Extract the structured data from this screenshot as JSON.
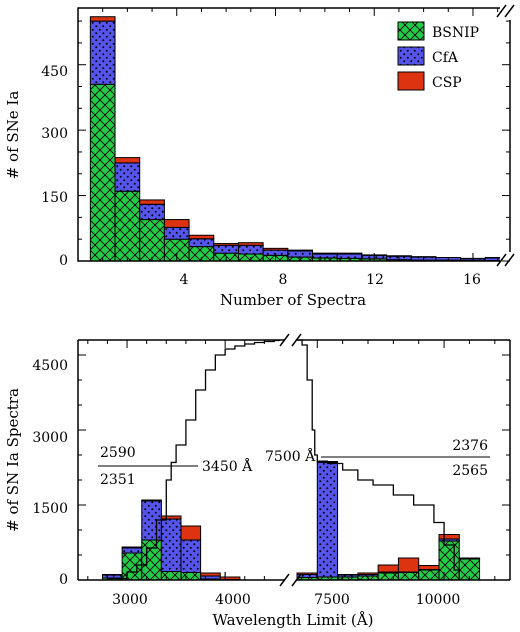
{
  "colors": {
    "bsnip": "#22cc44",
    "cfa": "#5555ee",
    "csp": "#dd3311"
  },
  "chart_data": [
    {
      "type": "bar",
      "stacked": true,
      "xlabel": "Number of Spectra",
      "ylabel": "# of SNe Ia",
      "xticks": [
        "4",
        "8",
        "12",
        "16"
      ],
      "yticks": [
        "0",
        "150",
        "300",
        "450"
      ],
      "xlim": [
        0,
        17.5
      ],
      "ylim": [
        0,
        580
      ],
      "legend_position": "top-right",
      "legend": [
        "BSNIP",
        "CfA",
        "CSP"
      ],
      "x": [
        1,
        2,
        3,
        4,
        5,
        6,
        7,
        8,
        9,
        10,
        11,
        12,
        13,
        14,
        15,
        16,
        17
      ],
      "series": [
        {
          "name": "BSNIP",
          "values": [
            405,
            160,
            95,
            50,
            33,
            18,
            16,
            13,
            9,
            7,
            6,
            5,
            3,
            2,
            2,
            1,
            1
          ]
        },
        {
          "name": "CfA",
          "values": [
            145,
            65,
            35,
            27,
            18,
            18,
            20,
            12,
            14,
            9,
            10,
            8,
            8,
            7,
            6,
            4,
            6
          ]
        },
        {
          "name": "CSP",
          "values": [
            10,
            12,
            10,
            18,
            8,
            4,
            6,
            4,
            2,
            2,
            2,
            1,
            1,
            1,
            0,
            1,
            1
          ]
        }
      ]
    },
    {
      "type": "bar",
      "stacked": true,
      "broken_x_axis": true,
      "xlabel": "Wavelength Limit (Å)",
      "ylabel": "# of SN Ia Spectra",
      "xticks": [
        "3000",
        "4000",
        "7500",
        "10000"
      ],
      "yticks": [
        "0",
        "1500",
        "3000",
        "4500"
      ],
      "ylim": [
        0,
        4800
      ],
      "segments": [
        {
          "xlim": [
            2500,
            4600
          ]
        },
        {
          "xlim": [
            7100,
            11300
          ]
        }
      ],
      "left_bars": {
        "x": [
          2850,
          3050,
          3250,
          3450,
          3650,
          3850,
          4050
        ],
        "series": [
          {
            "name": "BSNIP",
            "values": [
              40,
              540,
              800,
              170,
              150,
              20,
              5
            ]
          },
          {
            "name": "CfA",
            "values": [
              60,
              100,
              780,
              1050,
              650,
              60,
              5
            ]
          },
          {
            "name": "CSP",
            "values": [
              10,
              20,
              20,
              60,
              280,
              60,
              50
            ]
          }
        ]
      },
      "right_bars": {
        "x": [
          7300,
          7700,
          8100,
          8500,
          8900,
          9300,
          9700,
          10100,
          10500
        ],
        "series": [
          {
            "name": "BSNIP",
            "values": [
              50,
              60,
              60,
              80,
              140,
              150,
              200,
              780,
              420
            ]
          },
          {
            "name": "CfA",
            "values": [
              60,
              2290,
              40,
              30,
              20,
              10,
              10,
              40,
              10
            ]
          },
          {
            "name": "CSP",
            "values": [
              30,
              20,
              10,
              30,
              140,
              280,
              80,
              90,
              10
            ]
          }
        ]
      },
      "cumulative_left": {
        "x": [
          2800,
          3000,
          3100,
          3200,
          3300,
          3400,
          3450,
          3500,
          3600,
          3700,
          3800,
          3900,
          4000,
          4100,
          4200,
          4300,
          4400,
          4500,
          4550
        ],
        "y": [
          30,
          160,
          300,
          640,
          1200,
          2000,
          2351,
          2700,
          3200,
          3800,
          4200,
          4500,
          4620,
          4680,
          4720,
          4750,
          4770,
          4790,
          4800
        ]
      },
      "cumulative_right": {
        "x": [
          7100,
          7200,
          7300,
          7400,
          7450,
          7500,
          7700,
          8000,
          8300,
          8600,
          9000,
          9400,
          9800,
          10000,
          10200,
          10300
        ],
        "y": [
          4800,
          4700,
          4000,
          3000,
          2500,
          2376,
          2330,
          2200,
          2000,
          1900,
          1700,
          1500,
          1150,
          700,
          200,
          50
        ]
      },
      "annotations": {
        "left_top": "2590",
        "left_bottom": "2351",
        "left_label": "3450 Å",
        "right_label": "7500 Å",
        "right_top": "2376",
        "right_bottom": "2565"
      },
      "split_levels": {
        "left": 2351,
        "right": 2376
      }
    }
  ]
}
